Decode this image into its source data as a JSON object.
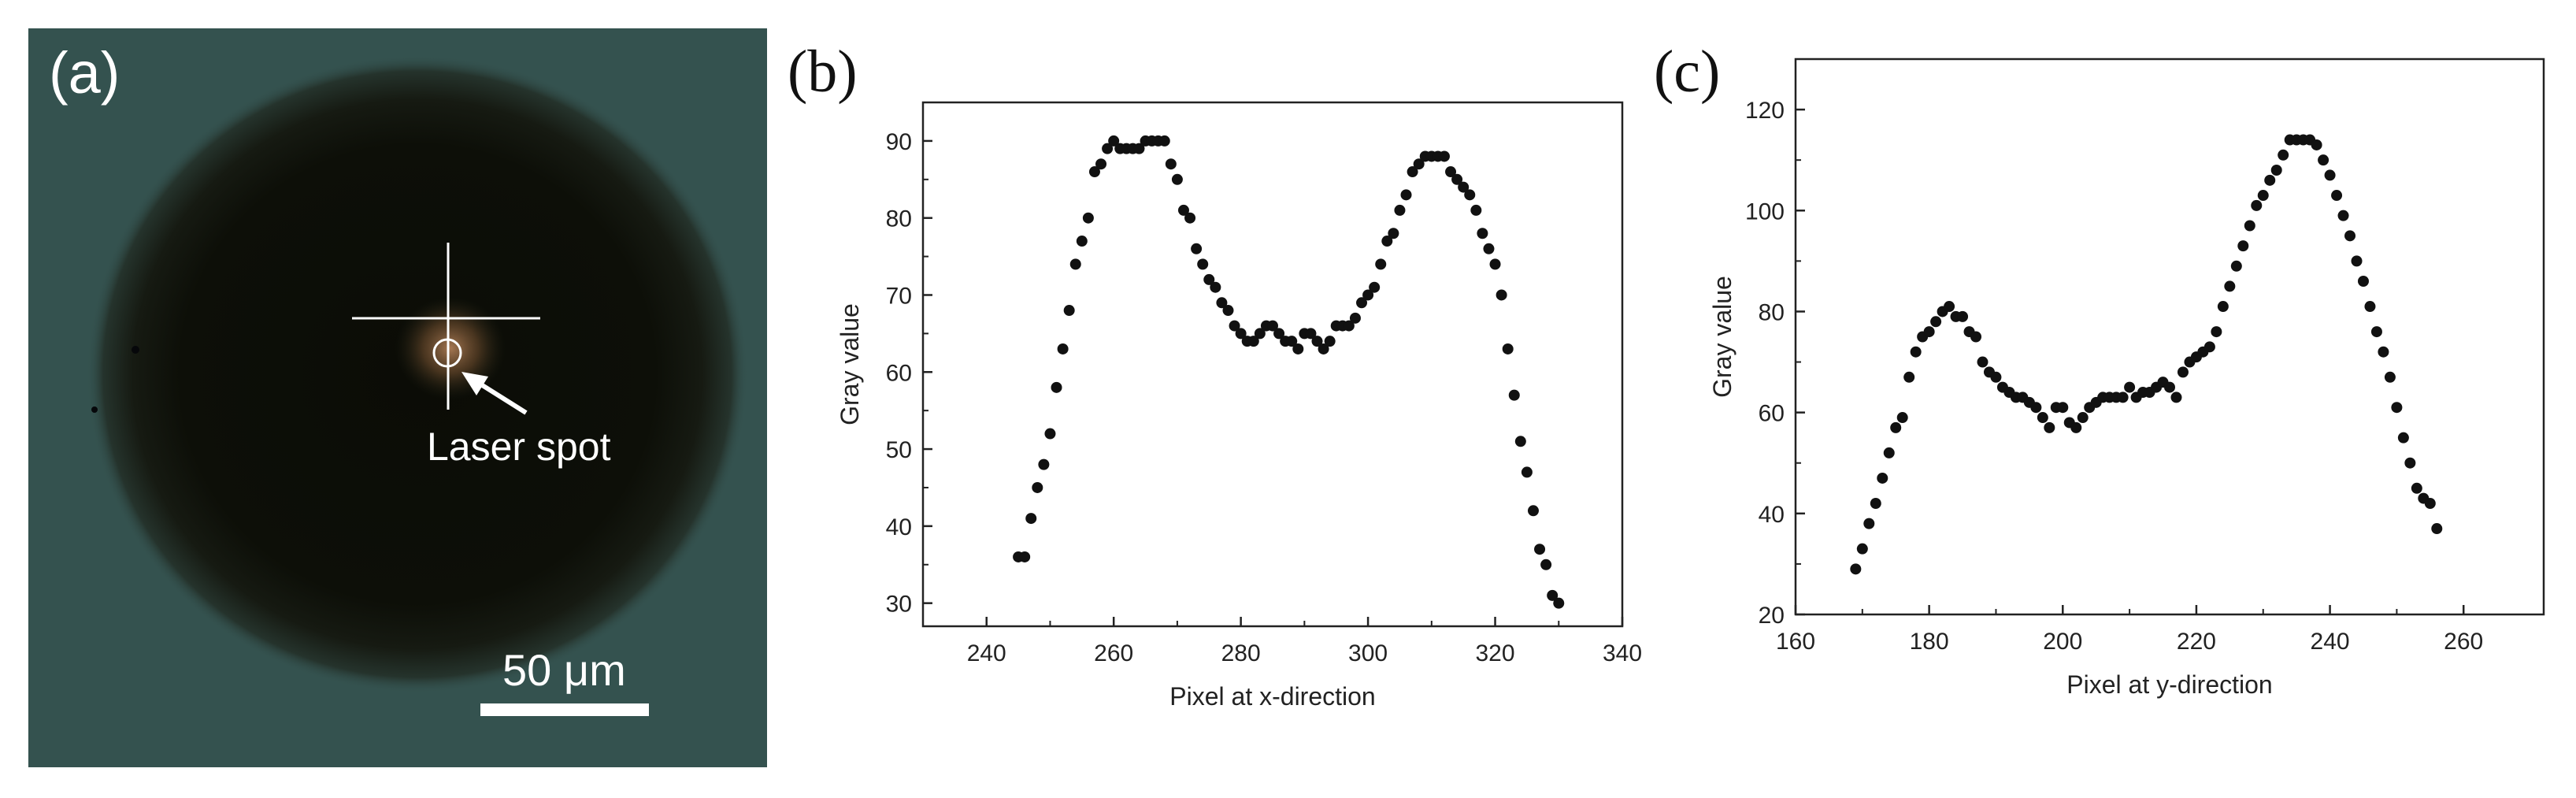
{
  "panel_a": {
    "letter": "(a)",
    "annotation": "Laser spot",
    "scale_label": "50 μm",
    "colors": {
      "background": "#34524f",
      "dark_disk": "#0c0d07",
      "spot": "#b8825a",
      "overlay": "#ffffff"
    }
  },
  "chart_data": [
    {
      "panel": "(b)",
      "type": "scatter",
      "title": "",
      "xlabel": "Pixel at x-direction",
      "ylabel": "Gray value",
      "xlim": [
        230,
        340
      ],
      "ylim": [
        27,
        95
      ],
      "x_ticks": [
        240,
        260,
        280,
        300,
        320,
        340
      ],
      "y_ticks": [
        30,
        40,
        50,
        60,
        70,
        80,
        90
      ],
      "marker_color": "#111111",
      "points": [
        [
          245,
          36
        ],
        [
          246,
          36
        ],
        [
          247,
          41
        ],
        [
          248,
          45
        ],
        [
          249,
          48
        ],
        [
          250,
          52
        ],
        [
          251,
          58
        ],
        [
          252,
          63
        ],
        [
          253,
          68
        ],
        [
          254,
          74
        ],
        [
          255,
          77
        ],
        [
          256,
          80
        ],
        [
          257,
          86
        ],
        [
          258,
          87
        ],
        [
          259,
          89
        ],
        [
          260,
          90
        ],
        [
          261,
          89
        ],
        [
          262,
          89
        ],
        [
          263,
          89
        ],
        [
          264,
          89
        ],
        [
          265,
          90
        ],
        [
          266,
          90
        ],
        [
          267,
          90
        ],
        [
          268,
          90
        ],
        [
          269,
          87
        ],
        [
          270,
          85
        ],
        [
          271,
          81
        ],
        [
          272,
          80
        ],
        [
          273,
          76
        ],
        [
          274,
          74
        ],
        [
          275,
          72
        ],
        [
          276,
          71
        ],
        [
          277,
          69
        ],
        [
          278,
          68
        ],
        [
          279,
          66
        ],
        [
          280,
          65
        ],
        [
          281,
          64
        ],
        [
          282,
          64
        ],
        [
          283,
          65
        ],
        [
          284,
          66
        ],
        [
          285,
          66
        ],
        [
          286,
          65
        ],
        [
          287,
          64
        ],
        [
          288,
          64
        ],
        [
          289,
          63
        ],
        [
          290,
          65
        ],
        [
          291,
          65
        ],
        [
          292,
          64
        ],
        [
          293,
          63
        ],
        [
          294,
          64
        ],
        [
          295,
          66
        ],
        [
          296,
          66
        ],
        [
          297,
          66
        ],
        [
          298,
          67
        ],
        [
          299,
          69
        ],
        [
          300,
          70
        ],
        [
          301,
          71
        ],
        [
          302,
          74
        ],
        [
          303,
          77
        ],
        [
          304,
          78
        ],
        [
          305,
          81
        ],
        [
          306,
          83
        ],
        [
          307,
          86
        ],
        [
          308,
          87
        ],
        [
          309,
          88
        ],
        [
          310,
          88
        ],
        [
          311,
          88
        ],
        [
          312,
          88
        ],
        [
          313,
          86
        ],
        [
          314,
          85
        ],
        [
          315,
          84
        ],
        [
          316,
          83
        ],
        [
          317,
          81
        ],
        [
          318,
          78
        ],
        [
          319,
          76
        ],
        [
          320,
          74
        ],
        [
          321,
          70
        ],
        [
          322,
          63
        ],
        [
          323,
          57
        ],
        [
          324,
          51
        ],
        [
          325,
          47
        ],
        [
          326,
          42
        ],
        [
          327,
          37
        ],
        [
          328,
          35
        ],
        [
          329,
          31
        ],
        [
          330,
          30
        ]
      ]
    },
    {
      "panel": "(c)",
      "type": "scatter",
      "title": "",
      "xlabel": "Pixel at y-direction",
      "ylabel": "Gray value",
      "xlim": [
        160,
        272
      ],
      "ylim": [
        20,
        130
      ],
      "x_ticks": [
        160,
        180,
        200,
        220,
        240,
        260
      ],
      "y_ticks": [
        20,
        40,
        60,
        80,
        100,
        120
      ],
      "marker_color": "#111111",
      "points": [
        [
          169,
          29
        ],
        [
          170,
          33
        ],
        [
          171,
          38
        ],
        [
          172,
          42
        ],
        [
          173,
          47
        ],
        [
          174,
          52
        ],
        [
          175,
          57
        ],
        [
          176,
          59
        ],
        [
          177,
          67
        ],
        [
          178,
          72
        ],
        [
          179,
          75
        ],
        [
          180,
          76
        ],
        [
          181,
          78
        ],
        [
          182,
          80
        ],
        [
          183,
          81
        ],
        [
          184,
          79
        ],
        [
          185,
          79
        ],
        [
          186,
          76
        ],
        [
          187,
          75
        ],
        [
          188,
          70
        ],
        [
          189,
          68
        ],
        [
          190,
          67
        ],
        [
          191,
          65
        ],
        [
          192,
          64
        ],
        [
          193,
          63
        ],
        [
          194,
          63
        ],
        [
          195,
          62
        ],
        [
          196,
          61
        ],
        [
          197,
          59
        ],
        [
          198,
          57
        ],
        [
          199,
          61
        ],
        [
          200,
          61
        ],
        [
          201,
          58
        ],
        [
          202,
          57
        ],
        [
          203,
          59
        ],
        [
          204,
          61
        ],
        [
          205,
          62
        ],
        [
          206,
          63
        ],
        [
          207,
          63
        ],
        [
          208,
          63
        ],
        [
          209,
          63
        ],
        [
          210,
          65
        ],
        [
          211,
          63
        ],
        [
          212,
          64
        ],
        [
          213,
          64
        ],
        [
          214,
          65
        ],
        [
          215,
          66
        ],
        [
          216,
          65
        ],
        [
          217,
          63
        ],
        [
          218,
          68
        ],
        [
          219,
          70
        ],
        [
          220,
          71
        ],
        [
          221,
          72
        ],
        [
          222,
          73
        ],
        [
          223,
          76
        ],
        [
          224,
          81
        ],
        [
          225,
          85
        ],
        [
          226,
          89
        ],
        [
          227,
          93
        ],
        [
          228,
          97
        ],
        [
          229,
          101
        ],
        [
          230,
          103
        ],
        [
          231,
          106
        ],
        [
          232,
          108
        ],
        [
          233,
          111
        ],
        [
          234,
          114
        ],
        [
          235,
          114
        ],
        [
          236,
          114
        ],
        [
          237,
          114
        ],
        [
          238,
          113
        ],
        [
          239,
          110
        ],
        [
          240,
          107
        ],
        [
          241,
          103
        ],
        [
          242,
          99
        ],
        [
          243,
          95
        ],
        [
          244,
          90
        ],
        [
          245,
          86
        ],
        [
          246,
          81
        ],
        [
          247,
          76
        ],
        [
          248,
          72
        ],
        [
          249,
          67
        ],
        [
          250,
          61
        ],
        [
          251,
          55
        ],
        [
          252,
          50
        ],
        [
          253,
          45
        ],
        [
          254,
          43
        ],
        [
          255,
          42
        ],
        [
          256,
          37
        ]
      ]
    }
  ]
}
